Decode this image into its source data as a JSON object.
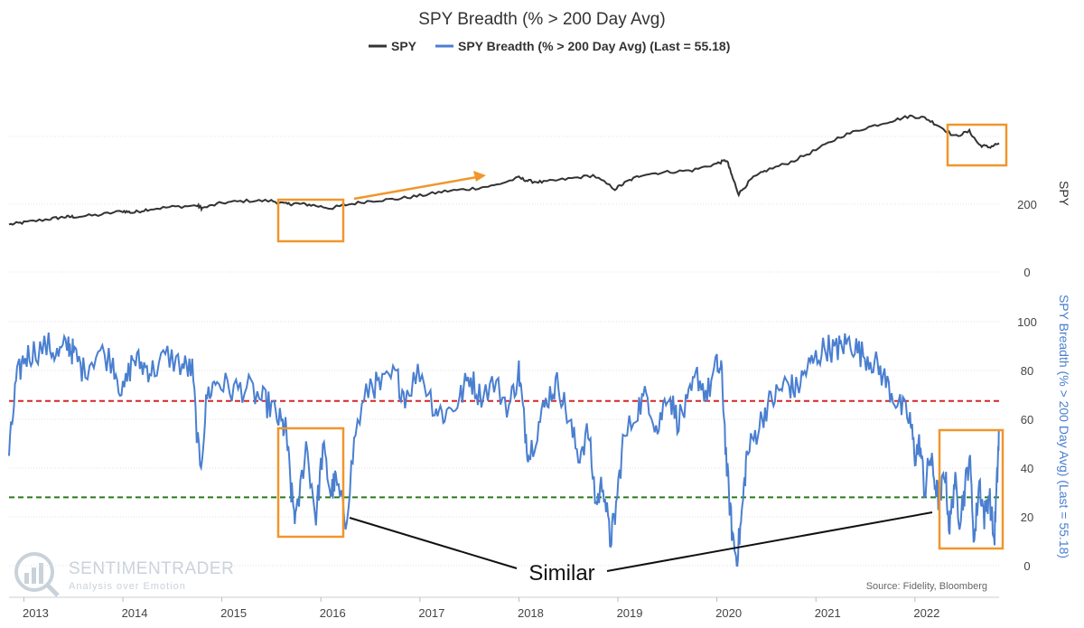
{
  "chart_data": {
    "type": "line",
    "title": "SPY Breadth (% > 200 Day Avg)",
    "legend": {
      "placement": "top-center",
      "entries": [
        {
          "label": "SPY",
          "color": "#333333"
        },
        {
          "label": "SPY Breadth (% > 200 Day Avg) (Last = 55.18)",
          "color": "#4a7fd0"
        }
      ]
    },
    "x_axis": {
      "ticks": [
        "2013",
        "2014",
        "2015",
        "2016",
        "2017",
        "2018",
        "2019",
        "2020",
        "2021",
        "2022"
      ],
      "range": [
        2012.85,
        2022.85
      ]
    },
    "upper_panel": {
      "axis_title": "SPY",
      "ticks": [
        0,
        200
      ],
      "ylim": [
        0,
        500
      ],
      "grid": true,
      "series": {
        "name": "SPY",
        "color": "#333333",
        "x": [
          2012.85,
          2013.0,
          2013.25,
          2013.4,
          2013.5,
          2013.75,
          2014.0,
          2014.1,
          2014.25,
          2014.5,
          2014.75,
          2014.8,
          2015.0,
          2015.25,
          2015.5,
          2015.65,
          2015.75,
          2015.9,
          2016.1,
          2016.25,
          2016.5,
          2016.75,
          2017.0,
          2017.25,
          2017.5,
          2017.75,
          2018.0,
          2018.1,
          2018.25,
          2018.5,
          2018.75,
          2018.97,
          2019.1,
          2019.25,
          2019.5,
          2019.75,
          2020.0,
          2020.1,
          2020.15,
          2020.22,
          2020.35,
          2020.5,
          2020.75,
          2021.0,
          2021.25,
          2021.5,
          2021.75,
          2021.95,
          2022.1,
          2022.25,
          2022.4,
          2022.55,
          2022.65,
          2022.75,
          2022.85
        ],
        "y": [
          140,
          146,
          156,
          162,
          163,
          168,
          180,
          175,
          185,
          192,
          196,
          188,
          204,
          210,
          210,
          200,
          202,
          198,
          188,
          198,
          210,
          215,
          225,
          238,
          245,
          255,
          278,
          268,
          265,
          275,
          285,
          245,
          268,
          288,
          295,
          300,
          320,
          330,
          285,
          230,
          275,
          300,
          325,
          360,
          400,
          425,
          445,
          460,
          455,
          430,
          400,
          415,
          375,
          368,
          380
        ]
      }
    },
    "lower_panel": {
      "axis_title": "SPY Breadth (% > 200 Day Avg) (Last = 55.18)",
      "axis_title_color": "#4a7fd0",
      "ticks": [
        0,
        20,
        40,
        60,
        80,
        100
      ],
      "ylim": [
        0,
        100
      ],
      "grid": true,
      "reference_lines": [
        {
          "value": 67.5,
          "color": "#d62728",
          "style": "dashed"
        },
        {
          "value": 28,
          "color": "#2a7a1a",
          "style": "dashed"
        }
      ],
      "series": {
        "name": "SPY Breadth (% > 200 Day Avg)",
        "color": "#4a7fd0",
        "last": 55.18,
        "x": [
          2012.85,
          2012.92,
          2013.0,
          2013.1,
          2013.25,
          2013.35,
          2013.45,
          2013.5,
          2013.6,
          2013.75,
          2013.9,
          2014.0,
          2014.1,
          2014.2,
          2014.3,
          2014.45,
          2014.6,
          2014.7,
          2014.78,
          2014.85,
          2014.95,
          2015.1,
          2015.25,
          2015.4,
          2015.5,
          2015.6,
          2015.65,
          2015.7,
          2015.75,
          2015.85,
          2015.95,
          2016.02,
          2016.1,
          2016.15,
          2016.25,
          2016.35,
          2016.5,
          2016.6,
          2016.75,
          2016.85,
          2017.0,
          2017.15,
          2017.25,
          2017.4,
          2017.5,
          2017.6,
          2017.75,
          2017.9,
          2018.0,
          2018.05,
          2018.1,
          2018.2,
          2018.3,
          2018.4,
          2018.5,
          2018.6,
          2018.7,
          2018.78,
          2018.85,
          2018.92,
          2018.97,
          2019.05,
          2019.2,
          2019.3,
          2019.4,
          2019.5,
          2019.6,
          2019.7,
          2019.8,
          2019.9,
          2020.0,
          2020.05,
          2020.1,
          2020.15,
          2020.2,
          2020.25,
          2020.3,
          2020.4,
          2020.5,
          2020.6,
          2020.7,
          2020.8,
          2020.9,
          2021.0,
          2021.1,
          2021.2,
          2021.25,
          2021.35,
          2021.45,
          2021.55,
          2021.65,
          2021.75,
          2021.85,
          2021.95,
          2022.0,
          2022.05,
          2022.1,
          2022.15,
          2022.2,
          2022.25,
          2022.3,
          2022.35,
          2022.4,
          2022.45,
          2022.5,
          2022.55,
          2022.6,
          2022.65,
          2022.7,
          2022.75,
          2022.8,
          2022.83,
          2022.85
        ],
        "y": [
          45,
          75,
          85,
          88,
          90,
          86,
          91,
          87,
          80,
          88,
          84,
          70,
          85,
          82,
          80,
          86,
          82,
          80,
          38,
          70,
          76,
          72,
          73,
          68,
          65,
          58,
          55,
          30,
          18,
          50,
          20,
          48,
          30,
          35,
          18,
          55,
          75,
          73,
          78,
          70,
          80,
          65,
          62,
          68,
          78,
          70,
          75,
          65,
          80,
          60,
          45,
          58,
          70,
          75,
          60,
          45,
          55,
          25,
          35,
          10,
          20,
          50,
          65,
          70,
          55,
          72,
          60,
          65,
          78,
          70,
          82,
          78,
          40,
          15,
          2,
          20,
          45,
          55,
          65,
          70,
          75,
          72,
          80,
          85,
          90,
          88,
          90,
          92,
          87,
          85,
          80,
          72,
          65,
          60,
          45,
          50,
          30,
          45,
          35,
          25,
          40,
          15,
          35,
          20,
          30,
          45,
          10,
          35,
          20,
          30,
          10,
          35,
          55.18
        ]
      }
    },
    "annotations": {
      "similar_label": "Similar",
      "source": "Source: Fidelity, Bloomberg"
    },
    "watermark": {
      "brand": "SENTIMENTRADER",
      "tagline": "Analysis over Emotion"
    },
    "highlight_color": "#f0962b"
  }
}
